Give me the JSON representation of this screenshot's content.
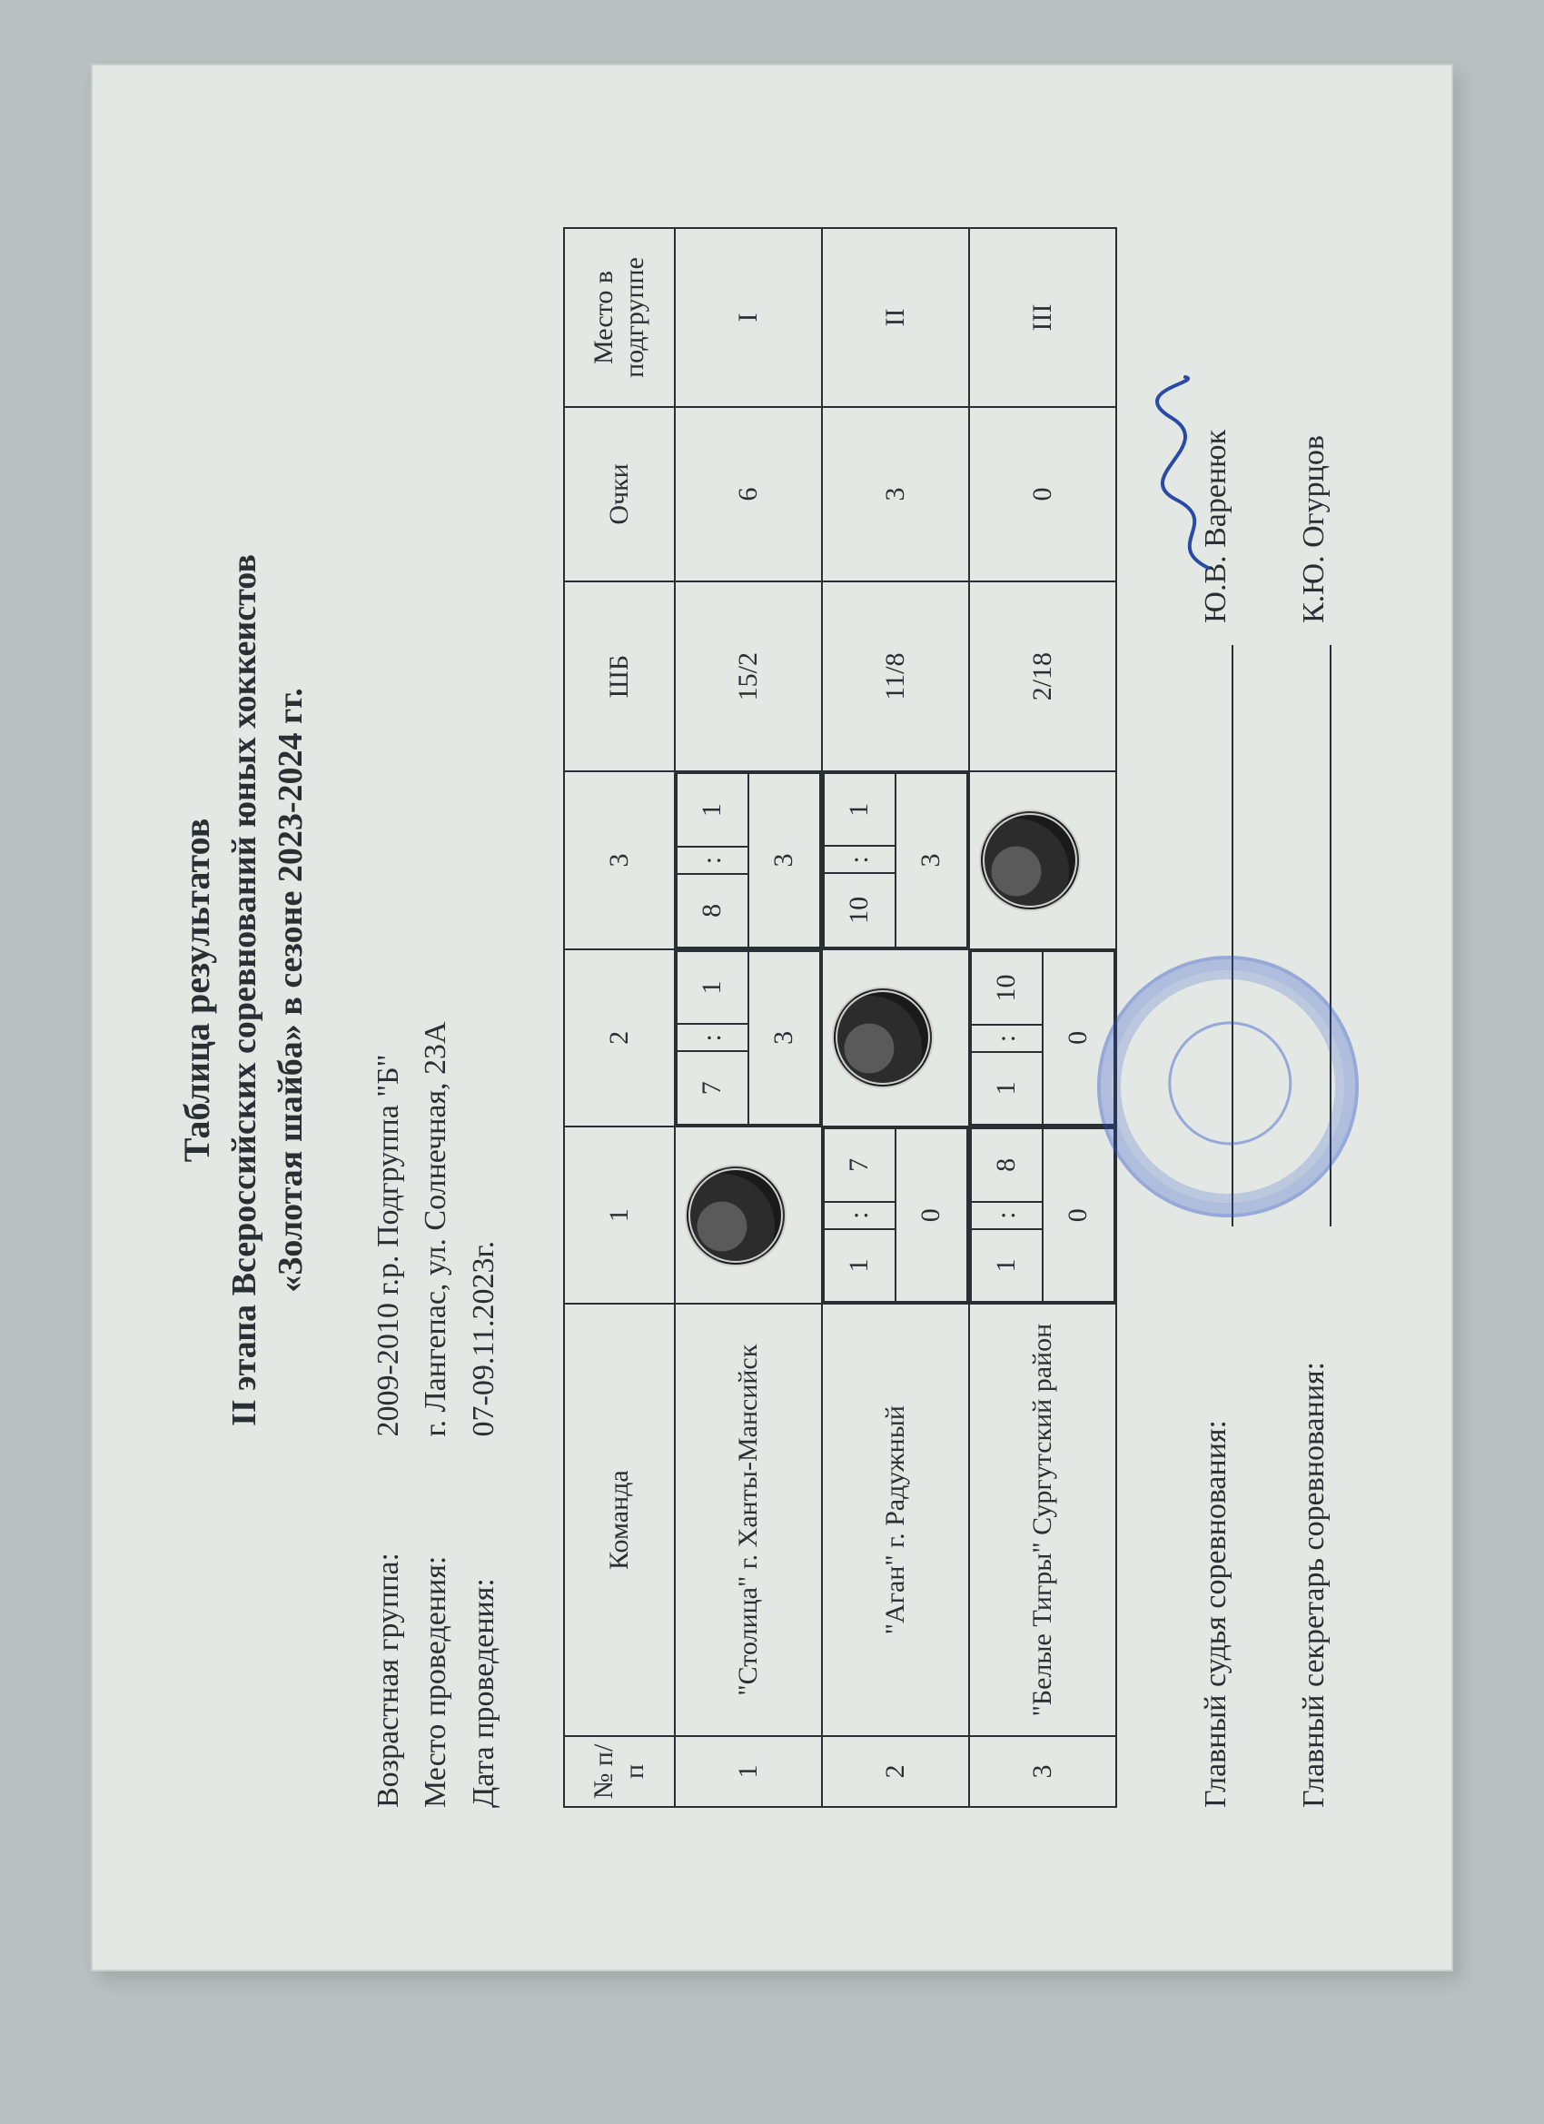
{
  "title": {
    "line1": "Таблица результатов",
    "line2": "II этапа Всероссийских соревнований юных хоккеистов",
    "line3": "«Золотая шайба» в сезоне 2023-2024 гг."
  },
  "meta": {
    "age_label": "Возрастная группа:",
    "age_value": "2009-2010 г.р. Подгруппа \"Б\"",
    "place_label": "Место проведения:",
    "place_value": "г. Лангепас, ул. Солнечная, 23А",
    "date_label": "Дата проведения:",
    "date_value": "07-09.11.2023г."
  },
  "table": {
    "headers": {
      "num": "№ п/п",
      "team": "Команда",
      "c1": "1",
      "c2": "2",
      "c3": "3",
      "shb": "ШБ",
      "pts": "Очки",
      "place": "Место в подгруппе"
    },
    "rows": [
      {
        "num": "1",
        "team": "\"Столица\" г. Ханты-Мансийск",
        "vs": [
          null,
          {
            "a": "7",
            "b": "1",
            "pts": "3"
          },
          {
            "a": "8",
            "b": "1",
            "pts": "3"
          }
        ],
        "shb": "15/2",
        "pts": "6",
        "place": "I"
      },
      {
        "num": "2",
        "team": "\"Аган\" г. Радужный",
        "vs": [
          {
            "a": "1",
            "b": "7",
            "pts": "0"
          },
          null,
          {
            "a": "10",
            "b": "1",
            "pts": "3"
          }
        ],
        "shb": "11/8",
        "pts": "3",
        "place": "II"
      },
      {
        "num": "3",
        "team": "\"Белые Тигры\" Сургутский район",
        "vs": [
          {
            "a": "1",
            "b": "8",
            "pts": "0"
          },
          {
            "a": "1",
            "b": "10",
            "pts": "0"
          },
          null
        ],
        "shb": "2/18",
        "pts": "0",
        "place": "III"
      }
    ]
  },
  "signatures": {
    "judge_label": "Главный судья  соревнования:",
    "judge_name": "Ю.В. Варенюк",
    "secretary_label": "Главный секретарь соревнования:",
    "secretary_name": "К.Ю. Огурцов"
  },
  "style": {
    "text_color": "#2a2f33",
    "paper_color": "#e3e8e4",
    "stamp_color": "rgba(40,80,200,.55)",
    "font_family": "Times New Roman",
    "title_fontsize_pt": 30,
    "body_fontsize_pt": 26
  }
}
